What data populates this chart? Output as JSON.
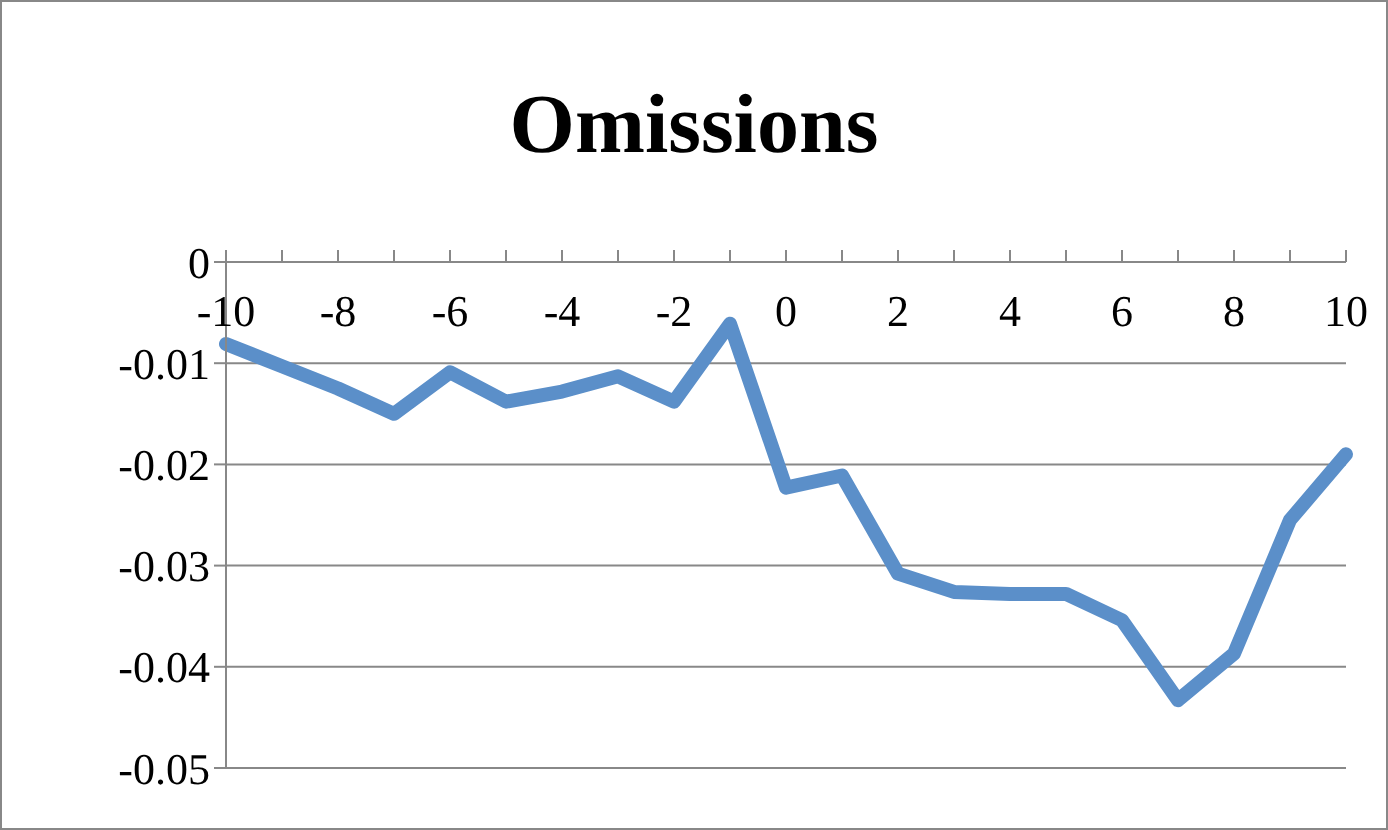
{
  "chart_data": {
    "type": "line",
    "title": "Omissions",
    "categories": [
      "-10",
      null,
      "-8",
      null,
      "-6",
      null,
      "-4",
      null,
      "-2",
      null,
      "0",
      null,
      "2",
      null,
      "4",
      null,
      "6",
      null,
      "8",
      null,
      "10"
    ],
    "series": [
      {
        "color": "#5b8fc9",
        "values": [
          -0.0081,
          -0.0103,
          -0.0125,
          -0.015,
          -0.0109,
          -0.0138,
          -0.0128,
          -0.0113,
          -0.0138,
          -0.0061,
          -0.0223,
          -0.0211,
          -0.0308,
          -0.0326,
          -0.0328,
          -0.0328,
          -0.0354,
          -0.0433,
          -0.0387,
          -0.0255,
          -0.019
        ]
      }
    ],
    "ylim": [
      -0.05,
      0
    ],
    "yticks": [
      -0.05,
      -0.04,
      -0.03,
      -0.02,
      -0.01,
      0
    ],
    "grid": "y",
    "legend": false
  }
}
